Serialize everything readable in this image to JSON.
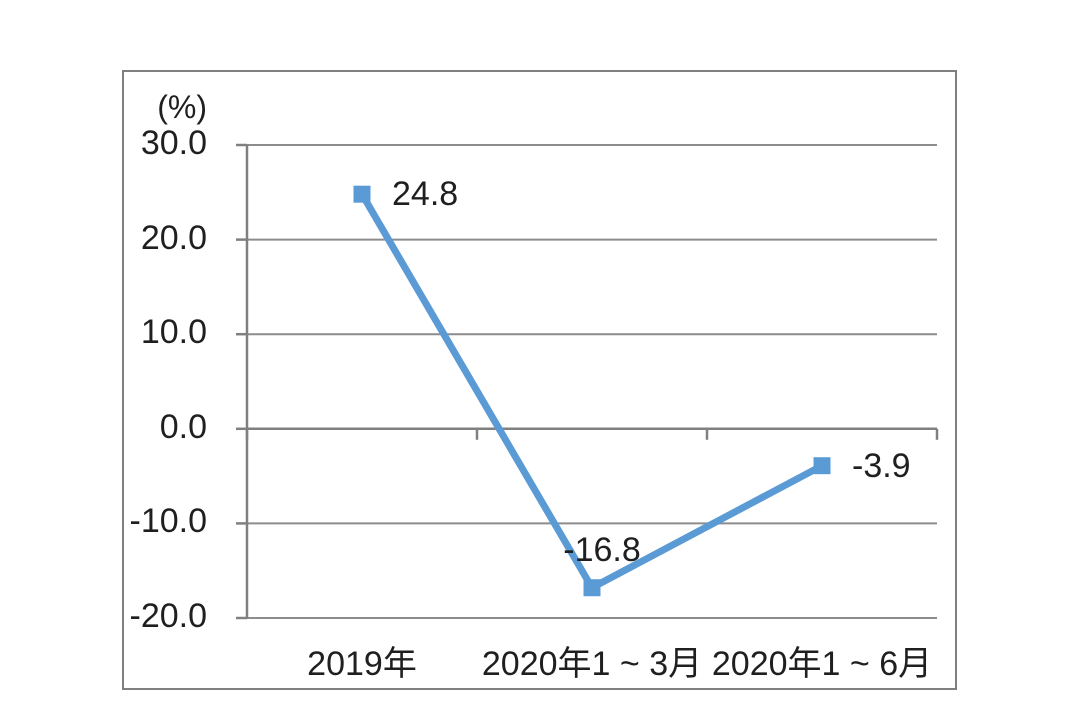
{
  "chart_data": {
    "type": "line",
    "categories": [
      "2019年",
      "2020年1～3月",
      "2020年1～6月"
    ],
    "values": [
      24.8,
      -16.8,
      -3.9
    ],
    "data_labels": [
      "24.8",
      "-16.8",
      "-3.9"
    ],
    "data_label_positions": [
      "right",
      "above",
      "right"
    ],
    "unit_label": "(%)",
    "yticks": [
      30,
      20,
      10,
      0,
      -10,
      -20
    ],
    "ytick_labels": [
      "30.0",
      "20.0",
      "10.0",
      "0.0",
      "-10.0",
      "-20.0"
    ],
    "ylim": [
      -20,
      30
    ],
    "xlabel": "",
    "ylabel": "(%)",
    "title": "",
    "grid": true,
    "legend": false,
    "line_color": "#5B9BD5",
    "marker": "square",
    "grid_color": "#8c8c8c",
    "axis_color": "#808080",
    "text_color": "#1f1f1f",
    "frame_color": "#7f7f7f"
  }
}
